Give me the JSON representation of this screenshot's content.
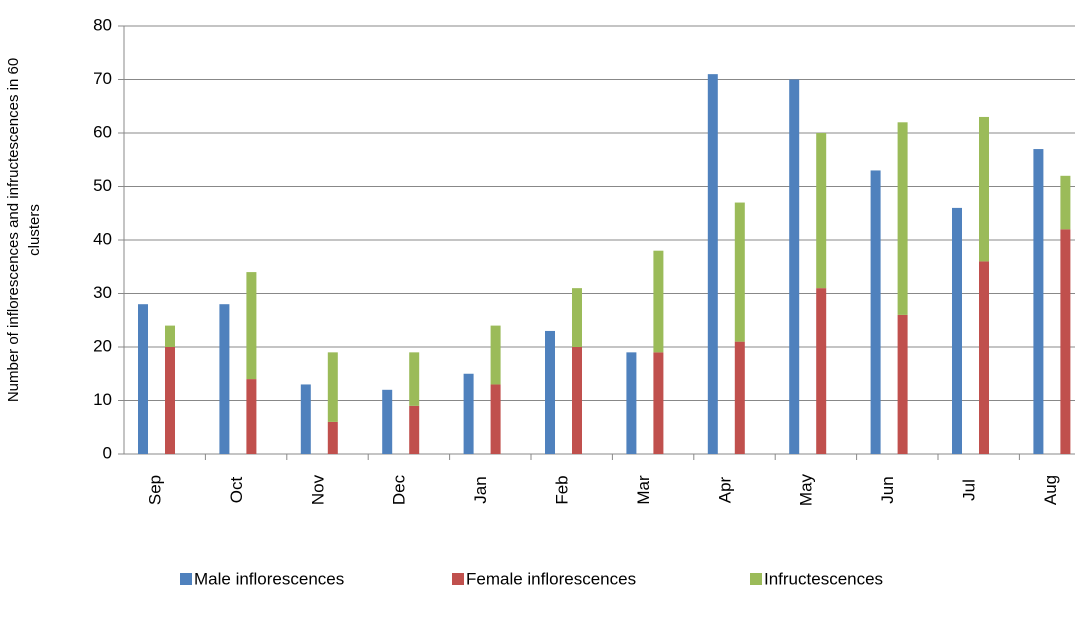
{
  "chart_data": {
    "type": "bar",
    "ylabel": [
      "Number of inflorescences and infructescences in 60",
      "clusters"
    ],
    "categories": [
      "Sep",
      "Oct",
      "Nov",
      "Dec",
      "Jan",
      "Feb",
      "Mar",
      "Apr",
      "May",
      "Jun",
      "Jul",
      "Aug"
    ],
    "series": [
      {
        "name": "Male inflorescences",
        "color": "#4f81bd",
        "stack": 0,
        "values": [
          28,
          28,
          13,
          12,
          15,
          23,
          19,
          71,
          70,
          53,
          46,
          57
        ]
      },
      {
        "name": "Female inflorescences",
        "color": "#c0504d",
        "stack": 1,
        "values": [
          20,
          14,
          6,
          9,
          13,
          20,
          19,
          21,
          31,
          26,
          36,
          42
        ]
      },
      {
        "name": "Infructescences",
        "color": "#9bbb59",
        "stack": 1,
        "values": [
          4,
          20,
          13,
          10,
          11,
          11,
          19,
          26,
          29,
          36,
          27,
          10
        ]
      }
    ],
    "ylim": [
      0,
      80
    ],
    "yticks": [
      0,
      10,
      20,
      30,
      40,
      50,
      60,
      70,
      80
    ],
    "grid": true,
    "legend": "bottom"
  }
}
